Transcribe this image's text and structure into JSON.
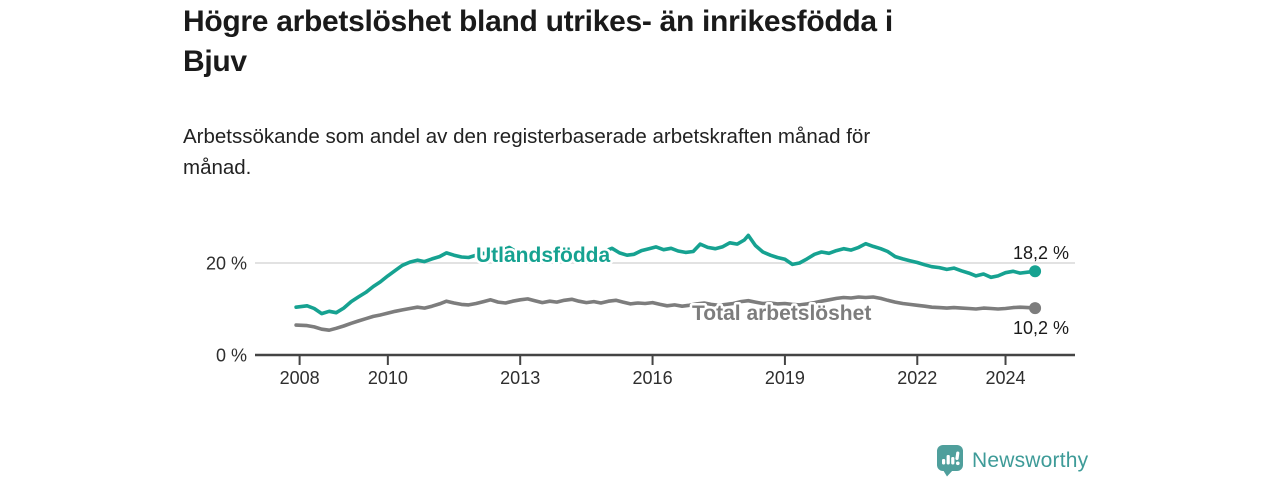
{
  "header": {
    "title_lines": [
      "Högre arbetslöshet bland utrikes- än inrikesfödda i",
      "Bjuv"
    ],
    "subtitle_lines": [
      "Arbetssökande som andel av den registerbaserade arbetskraften månad för",
      "månad."
    ]
  },
  "footer": {
    "brand": "Newsworthy",
    "logo_icon": "bar-chart-speech-bubble-icon"
  },
  "colors": {
    "foreign_born_line": "#16a291",
    "total_line": "#7d7d7d",
    "axis": "#444444",
    "grid": "#d8d8d8",
    "text": "#1a1a1a",
    "brand": "#3e9b98",
    "brand_icon": "#4f9f9c"
  },
  "chart_data": {
    "type": "line",
    "unit": "%",
    "x_label": "",
    "y_label": "",
    "x_range": [
      2007.9,
      2025.5
    ],
    "y_range": [
      0,
      28
    ],
    "grid": "horizontal line at 20% only",
    "legend_position": "inline labels on lines",
    "x_ticks": [
      2008,
      2010,
      2013,
      2016,
      2019,
      2022,
      2024
    ],
    "y_ticks": [
      {
        "value": 0,
        "label": "0 %"
      },
      {
        "value": 20,
        "label": "20 %"
      }
    ],
    "series": [
      {
        "name": "Utlandsfödda",
        "color": "#16a291",
        "end_label": "18,2 %",
        "end_value": 18.2,
        "points": [
          [
            2007.92,
            10.4
          ],
          [
            2008.17,
            10.7
          ],
          [
            2008.33,
            10.1
          ],
          [
            2008.5,
            9.0
          ],
          [
            2008.67,
            9.5
          ],
          [
            2008.83,
            9.2
          ],
          [
            2009.0,
            10.2
          ],
          [
            2009.17,
            11.6
          ],
          [
            2009.33,
            12.6
          ],
          [
            2009.5,
            13.6
          ],
          [
            2009.67,
            14.9
          ],
          [
            2009.83,
            15.9
          ],
          [
            2010.0,
            17.2
          ],
          [
            2010.17,
            18.4
          ],
          [
            2010.33,
            19.5
          ],
          [
            2010.5,
            20.2
          ],
          [
            2010.67,
            20.6
          ],
          [
            2010.83,
            20.3
          ],
          [
            2011.0,
            20.9
          ],
          [
            2011.17,
            21.4
          ],
          [
            2011.33,
            22.2
          ],
          [
            2011.5,
            21.7
          ],
          [
            2011.67,
            21.3
          ],
          [
            2011.83,
            21.2
          ],
          [
            2012.0,
            21.7
          ],
          [
            2012.17,
            22.1
          ],
          [
            2012.33,
            21.6
          ],
          [
            2012.5,
            22.4
          ],
          [
            2012.75,
            23.4
          ],
          [
            2012.92,
            22.4
          ],
          [
            2013.17,
            22.0
          ],
          [
            2013.42,
            21.8
          ],
          [
            2013.67,
            22.2
          ],
          [
            2013.92,
            21.9
          ],
          [
            2014.17,
            22.1
          ],
          [
            2014.42,
            21.7
          ],
          [
            2014.67,
            22.0
          ],
          [
            2014.92,
            22.6
          ],
          [
            2015.08,
            23.2
          ],
          [
            2015.25,
            22.2
          ],
          [
            2015.42,
            21.7
          ],
          [
            2015.58,
            21.9
          ],
          [
            2015.75,
            22.7
          ],
          [
            2015.92,
            23.1
          ],
          [
            2016.08,
            23.5
          ],
          [
            2016.25,
            22.9
          ],
          [
            2016.42,
            23.2
          ],
          [
            2016.58,
            22.6
          ],
          [
            2016.75,
            22.3
          ],
          [
            2016.92,
            22.5
          ],
          [
            2017.08,
            24.1
          ],
          [
            2017.25,
            23.4
          ],
          [
            2017.42,
            23.1
          ],
          [
            2017.58,
            23.5
          ],
          [
            2017.75,
            24.4
          ],
          [
            2017.92,
            24.1
          ],
          [
            2018.08,
            25.0
          ],
          [
            2018.17,
            26.0
          ],
          [
            2018.33,
            23.8
          ],
          [
            2018.5,
            22.4
          ],
          [
            2018.67,
            21.7
          ],
          [
            2018.83,
            21.2
          ],
          [
            2019.0,
            20.8
          ],
          [
            2019.17,
            19.7
          ],
          [
            2019.33,
            20.0
          ],
          [
            2019.5,
            20.9
          ],
          [
            2019.67,
            21.9
          ],
          [
            2019.83,
            22.4
          ],
          [
            2020.0,
            22.1
          ],
          [
            2020.17,
            22.7
          ],
          [
            2020.33,
            23.1
          ],
          [
            2020.5,
            22.8
          ],
          [
            2020.67,
            23.4
          ],
          [
            2020.83,
            24.2
          ],
          [
            2021.0,
            23.6
          ],
          [
            2021.17,
            23.1
          ],
          [
            2021.33,
            22.5
          ],
          [
            2021.5,
            21.4
          ],
          [
            2021.67,
            20.9
          ],
          [
            2021.83,
            20.5
          ],
          [
            2022.0,
            20.1
          ],
          [
            2022.17,
            19.6
          ],
          [
            2022.33,
            19.2
          ],
          [
            2022.5,
            19.0
          ],
          [
            2022.67,
            18.6
          ],
          [
            2022.83,
            18.9
          ],
          [
            2023.0,
            18.3
          ],
          [
            2023.17,
            17.8
          ],
          [
            2023.33,
            17.2
          ],
          [
            2023.5,
            17.6
          ],
          [
            2023.67,
            16.9
          ],
          [
            2023.83,
            17.2
          ],
          [
            2024.0,
            17.9
          ],
          [
            2024.17,
            18.2
          ],
          [
            2024.33,
            17.8
          ],
          [
            2024.5,
            18.0
          ],
          [
            2024.67,
            18.2
          ]
        ]
      },
      {
        "name": "Total arbetslöshet",
        "color": "#7d7d7d",
        "end_label": "10,2 %",
        "end_value": 10.2,
        "points": [
          [
            2007.92,
            6.5
          ],
          [
            2008.17,
            6.4
          ],
          [
            2008.33,
            6.1
          ],
          [
            2008.5,
            5.6
          ],
          [
            2008.67,
            5.4
          ],
          [
            2008.83,
            5.8
          ],
          [
            2009.0,
            6.3
          ],
          [
            2009.17,
            6.9
          ],
          [
            2009.33,
            7.4
          ],
          [
            2009.5,
            7.9
          ],
          [
            2009.67,
            8.4
          ],
          [
            2009.83,
            8.7
          ],
          [
            2010.0,
            9.1
          ],
          [
            2010.17,
            9.5
          ],
          [
            2010.33,
            9.8
          ],
          [
            2010.5,
            10.1
          ],
          [
            2010.67,
            10.4
          ],
          [
            2010.83,
            10.2
          ],
          [
            2011.0,
            10.6
          ],
          [
            2011.17,
            11.1
          ],
          [
            2011.33,
            11.7
          ],
          [
            2011.5,
            11.3
          ],
          [
            2011.67,
            11.0
          ],
          [
            2011.83,
            10.9
          ],
          [
            2012.0,
            11.2
          ],
          [
            2012.17,
            11.6
          ],
          [
            2012.33,
            12.0
          ],
          [
            2012.5,
            11.5
          ],
          [
            2012.67,
            11.3
          ],
          [
            2012.83,
            11.7
          ],
          [
            2013.0,
            12.0
          ],
          [
            2013.17,
            12.2
          ],
          [
            2013.33,
            11.8
          ],
          [
            2013.5,
            11.4
          ],
          [
            2013.67,
            11.7
          ],
          [
            2013.83,
            11.5
          ],
          [
            2014.0,
            11.9
          ],
          [
            2014.17,
            12.1
          ],
          [
            2014.33,
            11.7
          ],
          [
            2014.5,
            11.4
          ],
          [
            2014.67,
            11.6
          ],
          [
            2014.83,
            11.3
          ],
          [
            2015.0,
            11.7
          ],
          [
            2015.17,
            11.9
          ],
          [
            2015.33,
            11.5
          ],
          [
            2015.5,
            11.1
          ],
          [
            2015.67,
            11.3
          ],
          [
            2015.83,
            11.2
          ],
          [
            2016.0,
            11.4
          ],
          [
            2016.17,
            11.0
          ],
          [
            2016.33,
            10.7
          ],
          [
            2016.5,
            10.9
          ],
          [
            2016.67,
            10.6
          ],
          [
            2016.83,
            10.8
          ],
          [
            2017.0,
            11.1
          ],
          [
            2017.17,
            11.3
          ],
          [
            2017.33,
            11.0
          ],
          [
            2017.5,
            10.8
          ],
          [
            2017.67,
            11.0
          ],
          [
            2017.83,
            11.2
          ],
          [
            2018.0,
            11.6
          ],
          [
            2018.17,
            11.8
          ],
          [
            2018.33,
            11.5
          ],
          [
            2018.5,
            11.2
          ],
          [
            2018.67,
            11.3
          ],
          [
            2018.83,
            11.1
          ],
          [
            2019.0,
            11.2
          ],
          [
            2019.17,
            11.0
          ],
          [
            2019.33,
            10.9
          ],
          [
            2019.5,
            11.1
          ],
          [
            2019.67,
            11.4
          ],
          [
            2019.83,
            11.7
          ],
          [
            2020.0,
            12.0
          ],
          [
            2020.17,
            12.3
          ],
          [
            2020.33,
            12.5
          ],
          [
            2020.5,
            12.4
          ],
          [
            2020.67,
            12.6
          ],
          [
            2020.83,
            12.5
          ],
          [
            2021.0,
            12.6
          ],
          [
            2021.17,
            12.3
          ],
          [
            2021.33,
            11.9
          ],
          [
            2021.5,
            11.5
          ],
          [
            2021.67,
            11.2
          ],
          [
            2021.83,
            11.0
          ],
          [
            2022.0,
            10.8
          ],
          [
            2022.17,
            10.6
          ],
          [
            2022.33,
            10.4
          ],
          [
            2022.5,
            10.3
          ],
          [
            2022.67,
            10.2
          ],
          [
            2022.83,
            10.3
          ],
          [
            2023.0,
            10.2
          ],
          [
            2023.17,
            10.1
          ],
          [
            2023.33,
            10.0
          ],
          [
            2023.5,
            10.2
          ],
          [
            2023.67,
            10.1
          ],
          [
            2023.83,
            10.0
          ],
          [
            2024.0,
            10.1
          ],
          [
            2024.17,
            10.3
          ],
          [
            2024.33,
            10.4
          ],
          [
            2024.5,
            10.3
          ],
          [
            2024.67,
            10.2
          ]
        ]
      }
    ]
  }
}
